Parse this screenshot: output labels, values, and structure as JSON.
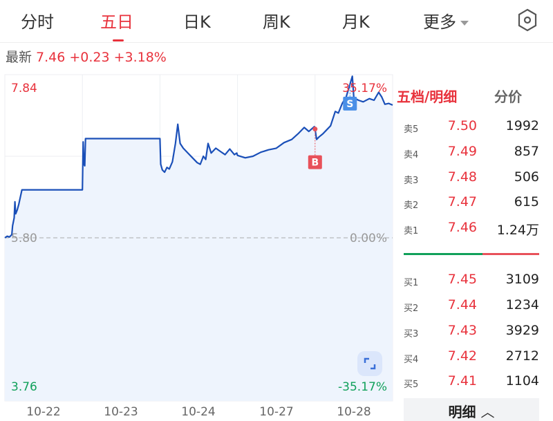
{
  "tabs": [
    {
      "label": "分时"
    },
    {
      "label": "五日"
    },
    {
      "label": "日K"
    },
    {
      "label": "周K"
    },
    {
      "label": "月K"
    },
    {
      "label": "更多"
    }
  ],
  "active_tab": "五日",
  "quote": {
    "label": "最新",
    "price": "7.46",
    "change": "+0.23",
    "pct": "+3.18%"
  },
  "colors": {
    "up": "#e8323c",
    "down": "#10a05a",
    "line": "#1a4fb8",
    "fill": "#eef4fd",
    "buy_marker": "#e8515a",
    "sell_marker": "#4a8fe7"
  },
  "chart_data": {
    "type": "line",
    "y_top_label": "7.84",
    "y_mid_label": "5.80",
    "y_bottom_label": "3.76",
    "pct_top_label": "35.17%",
    "pct_mid_label": "0.00%",
    "pct_bottom_label": "-35.17%",
    "ylim": [
      3.76,
      7.84
    ],
    "baseline": 5.8,
    "categories": [
      "10-22",
      "10-23",
      "10-24",
      "10-27",
      "10-28"
    ],
    "grid": true,
    "points": [
      [
        0,
        5.8
      ],
      [
        0.03,
        5.82
      ],
      [
        0.06,
        5.81
      ],
      [
        0.09,
        5.84
      ],
      [
        0.1,
        5.95
      ],
      [
        0.12,
        6.05
      ],
      [
        0.13,
        6.25
      ],
      [
        0.14,
        6.1
      ],
      [
        0.16,
        6.15
      ],
      [
        0.18,
        6.22
      ],
      [
        0.22,
        6.4
      ],
      [
        0.99,
        6.4
      ],
      [
        1.0,
        6.4
      ],
      [
        1.01,
        7.0
      ],
      [
        1.02,
        6.72
      ],
      [
        1.03,
        6.7
      ],
      [
        1.04,
        7.04
      ],
      [
        1.99,
        7.04
      ],
      [
        2.0,
        7.04
      ],
      [
        2.01,
        6.72
      ],
      [
        2.03,
        6.65
      ],
      [
        2.06,
        6.62
      ],
      [
        2.09,
        6.68
      ],
      [
        2.12,
        6.66
      ],
      [
        2.16,
        6.75
      ],
      [
        2.2,
        6.98
      ],
      [
        2.23,
        7.22
      ],
      [
        2.26,
        6.98
      ],
      [
        2.3,
        6.92
      ],
      [
        2.36,
        6.86
      ],
      [
        2.42,
        6.8
      ],
      [
        2.48,
        6.74
      ],
      [
        2.52,
        6.72
      ],
      [
        2.56,
        6.82
      ],
      [
        2.59,
        6.78
      ],
      [
        2.62,
        6.98
      ],
      [
        2.66,
        6.86
      ],
      [
        2.72,
        6.92
      ],
      [
        2.78,
        6.88
      ],
      [
        2.84,
        6.84
      ],
      [
        2.9,
        6.91
      ],
      [
        2.96,
        6.84
      ],
      [
        2.99,
        6.86
      ],
      [
        3.0,
        6.83
      ],
      [
        3.1,
        6.8
      ],
      [
        3.2,
        6.82
      ],
      [
        3.3,
        6.87
      ],
      [
        3.4,
        6.9
      ],
      [
        3.5,
        6.92
      ],
      [
        3.6,
        6.99
      ],
      [
        3.7,
        7.03
      ],
      [
        3.78,
        7.1
      ],
      [
        3.86,
        7.18
      ],
      [
        3.92,
        7.13
      ],
      [
        3.99,
        7.19
      ],
      [
        4.0,
        7.16
      ],
      [
        4.02,
        7.03
      ],
      [
        4.05,
        7.06
      ],
      [
        4.1,
        7.1
      ],
      [
        4.15,
        7.15
      ],
      [
        4.2,
        7.2
      ],
      [
        4.26,
        7.38
      ],
      [
        4.3,
        7.36
      ],
      [
        4.35,
        7.48
      ],
      [
        4.4,
        7.56
      ],
      [
        4.45,
        7.72
      ],
      [
        4.48,
        7.82
      ],
      [
        4.5,
        7.55
      ],
      [
        4.56,
        7.52
      ],
      [
        4.62,
        7.5
      ],
      [
        4.7,
        7.54
      ],
      [
        4.76,
        7.52
      ],
      [
        4.82,
        7.62
      ],
      [
        4.86,
        7.56
      ],
      [
        4.9,
        7.47
      ],
      [
        4.95,
        7.48
      ],
      [
        5.0,
        7.46
      ]
    ],
    "markers": [
      {
        "label": "B",
        "t": 4.0,
        "price": 7.16
      },
      {
        "label": "S",
        "t": 4.45,
        "price": 7.72
      }
    ]
  },
  "panel": {
    "tab_active": "五档/明细",
    "tab_other": "分价",
    "asks": [
      {
        "k": "卖5",
        "p": "7.50",
        "v": "1992"
      },
      {
        "k": "卖4",
        "p": "7.49",
        "v": "857"
      },
      {
        "k": "卖3",
        "p": "7.48",
        "v": "506"
      },
      {
        "k": "卖2",
        "p": "7.47",
        "v": "615"
      },
      {
        "k": "卖1",
        "p": "7.46",
        "v": "1.24万"
      }
    ],
    "bids": [
      {
        "k": "买1",
        "p": "7.45",
        "v": "3109"
      },
      {
        "k": "买2",
        "p": "7.44",
        "v": "1234"
      },
      {
        "k": "买3",
        "p": "7.43",
        "v": "3929"
      },
      {
        "k": "买4",
        "p": "7.42",
        "v": "2712"
      },
      {
        "k": "买5",
        "p": "7.41",
        "v": "1104"
      }
    ],
    "buy_ratio": 0.58,
    "detail_button": "明细"
  }
}
